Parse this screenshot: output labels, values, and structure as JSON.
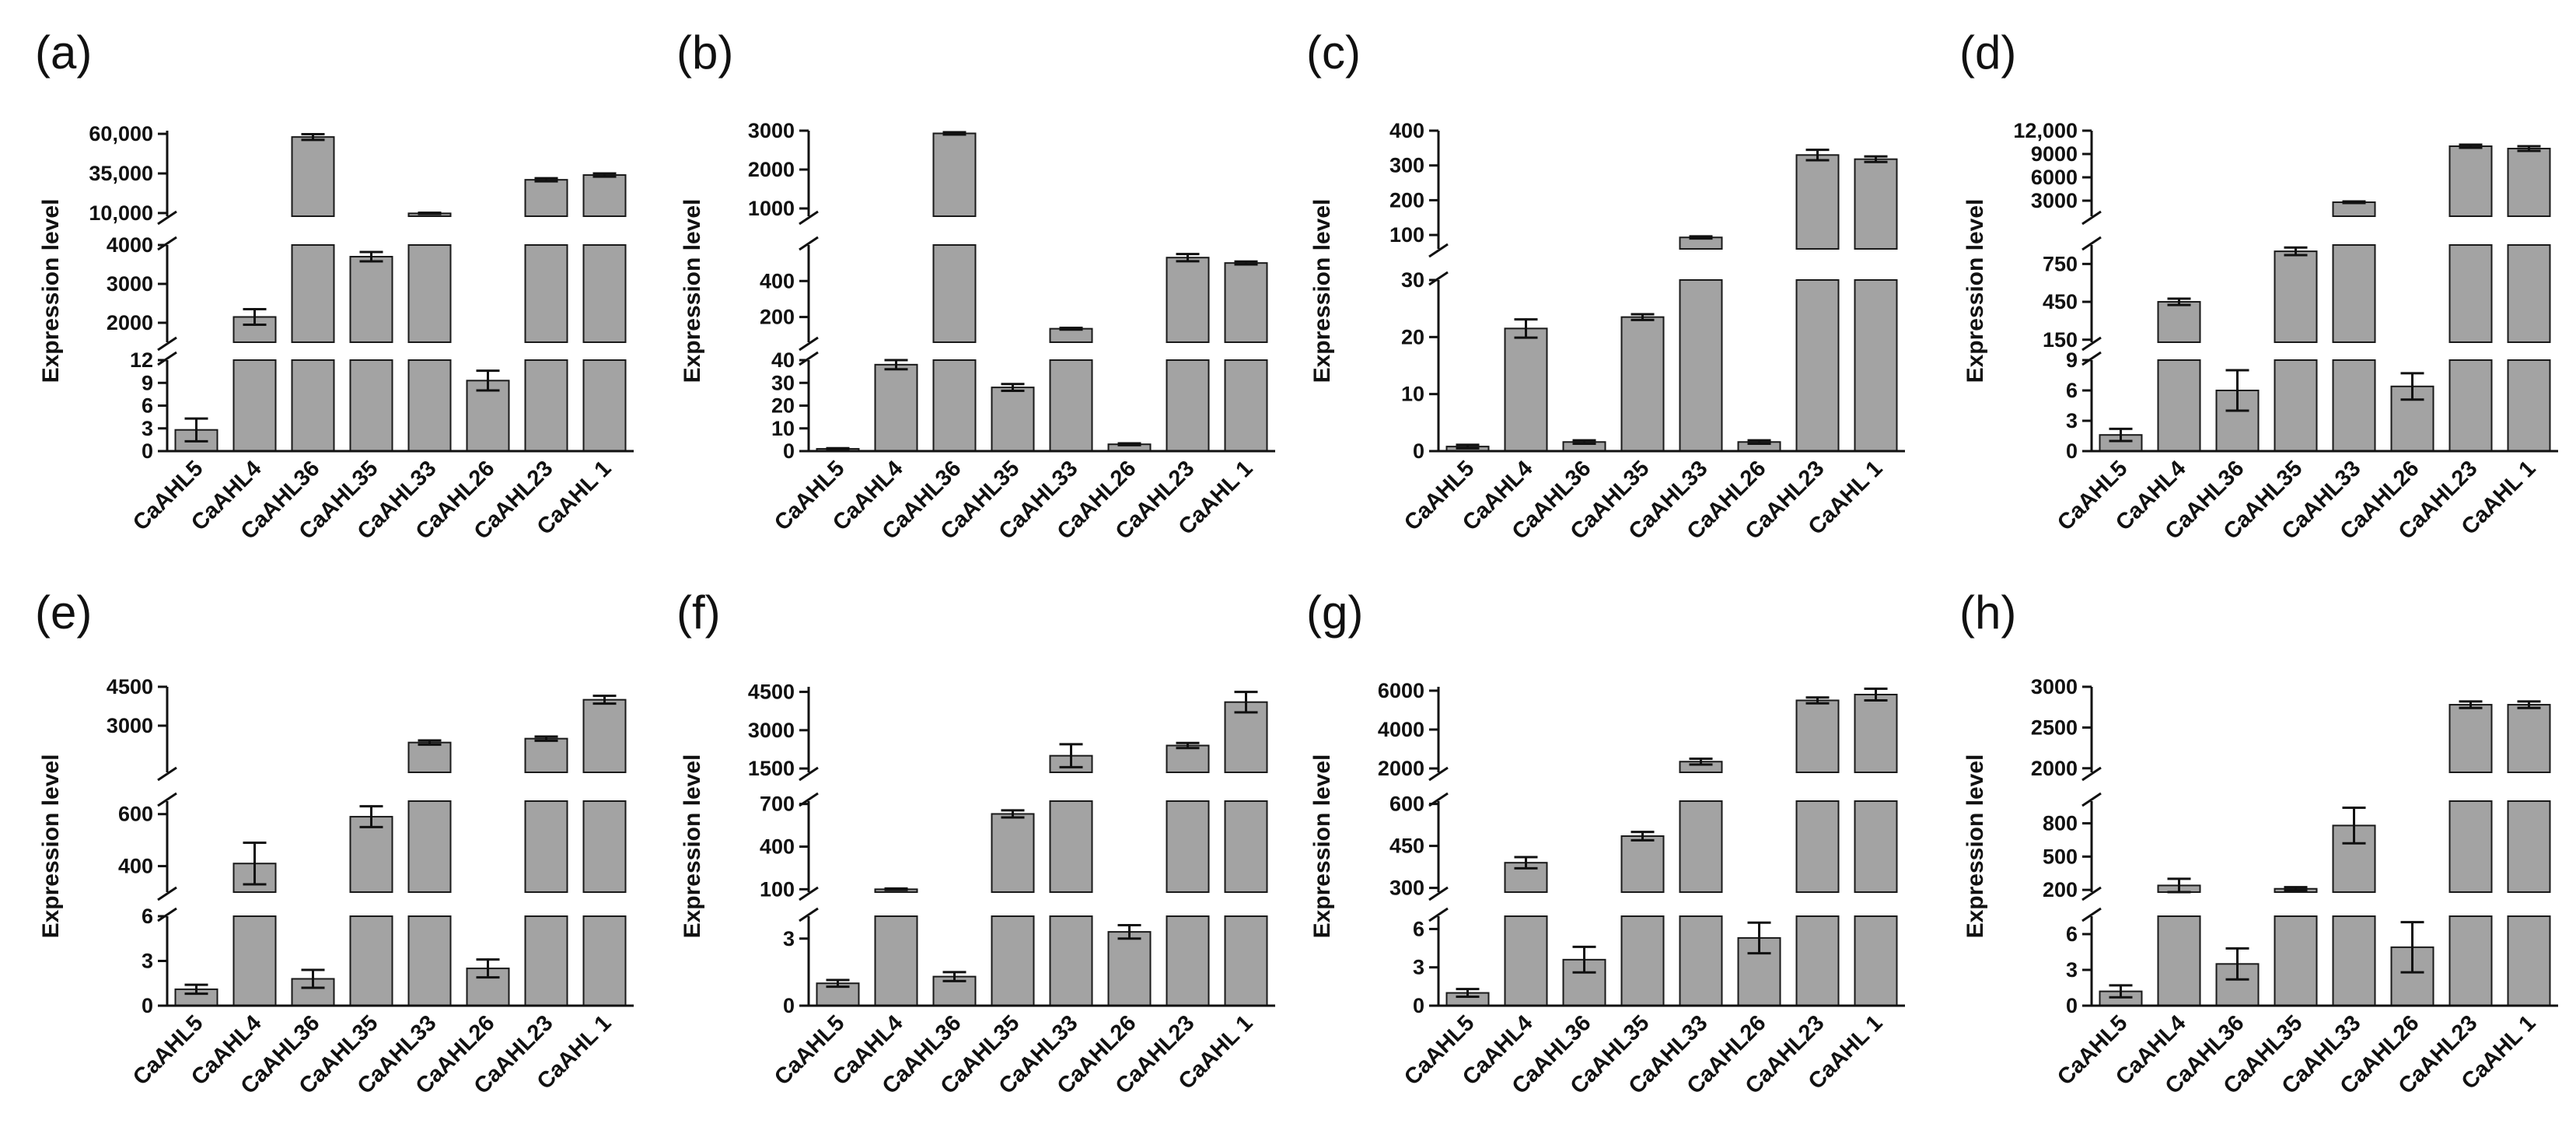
{
  "chart_data": [
    {
      "panel": "(a)",
      "type": "bar",
      "ylabel": "Expression level",
      "categories": [
        "CaAHL5",
        "CaAHL4",
        "CaAHL36",
        "CaAHL35",
        "CaAHL33",
        "CaAHL26",
        "CaAHL23",
        "CaAHL 1"
      ],
      "values": [
        2.8,
        2150,
        58000,
        3700,
        9800,
        9.3,
        31000,
        34000
      ],
      "errors": [
        1.5,
        200,
        1800,
        120,
        400,
        1.3,
        1000,
        1000
      ],
      "segments": [
        {
          "min": 0,
          "max": 12,
          "ticks": [
            0,
            3,
            6,
            9,
            12
          ],
          "tick_labels": [
            "0",
            "3",
            "6",
            "9",
            "12"
          ]
        },
        {
          "min": 1500,
          "max": 4000,
          "ticks": [
            2000,
            3000,
            4000
          ],
          "tick_labels": [
            "2000",
            "3000",
            "4000"
          ]
        },
        {
          "min": 8000,
          "max": 62000,
          "ticks": [
            10000,
            35000,
            60000
          ],
          "tick_labels": [
            "10,000",
            "35,000",
            "60,000"
          ]
        }
      ]
    },
    {
      "panel": "(b)",
      "type": "bar",
      "ylabel": "Expression level",
      "categories": [
        "CaAHL5",
        "CaAHL4",
        "CaAHL36",
        "CaAHL35",
        "CaAHL33",
        "CaAHL26",
        "CaAHL23",
        "CaAHL 1"
      ],
      "values": [
        1.0,
        38,
        2930,
        28,
        135,
        3.0,
        530,
        500
      ],
      "errors": [
        0.3,
        2,
        30,
        1.5,
        5,
        0.4,
        20,
        8
      ],
      "segments": [
        {
          "min": 0,
          "max": 40,
          "ticks": [
            0,
            10,
            20,
            30,
            40
          ],
          "tick_labels": [
            "0",
            "10",
            "20",
            "30",
            "40"
          ]
        },
        {
          "min": 60,
          "max": 600,
          "ticks": [
            200,
            400
          ],
          "tick_labels": [
            "200",
            "400"
          ]
        },
        {
          "min": 800,
          "max": 3000,
          "ticks": [
            1000,
            2000,
            3000
          ],
          "tick_labels": [
            "1000",
            "2000",
            "3000"
          ]
        }
      ]
    },
    {
      "panel": "(c)",
      "type": "bar",
      "ylabel": "Expression level",
      "categories": [
        "CaAHL5",
        "CaAHL4",
        "CaAHL36",
        "CaAHL35",
        "CaAHL33",
        "CaAHL26",
        "CaAHL23",
        "CaAHL 1"
      ],
      "values": [
        0.8,
        21.5,
        1.6,
        23.5,
        93,
        1.6,
        330,
        318
      ],
      "errors": [
        0.3,
        1.6,
        0.3,
        0.5,
        3,
        0.3,
        15,
        8
      ],
      "segments": [
        {
          "min": 0,
          "max": 30,
          "ticks": [
            0,
            10,
            20,
            30
          ],
          "tick_labels": [
            "0",
            "10",
            "20",
            "30"
          ]
        },
        {
          "min": 60,
          "max": 400,
          "ticks": [
            100,
            200,
            300,
            400
          ],
          "tick_labels": [
            "100",
            "200",
            "300",
            "400"
          ]
        }
      ]
    },
    {
      "panel": "(d)",
      "type": "bar",
      "ylabel": "Expression level",
      "categories": [
        "CaAHL5",
        "CaAHL4",
        "CaAHL36",
        "CaAHL35",
        "CaAHL33",
        "CaAHL26",
        "CaAHL23",
        "CaAHL 1"
      ],
      "values": [
        1.6,
        450,
        6.0,
        850,
        2800,
        6.4,
        10000,
        9700
      ],
      "errors": [
        0.6,
        25,
        2.0,
        30,
        100,
        1.3,
        200,
        300
      ],
      "segments": [
        {
          "min": 0,
          "max": 9,
          "ticks": [
            0,
            3,
            6,
            9
          ],
          "tick_labels": [
            "0",
            "3",
            "6",
            "9"
          ]
        },
        {
          "min": 130,
          "max": 900,
          "ticks": [
            150,
            450,
            750
          ],
          "tick_labels": [
            "150",
            "450",
            "750"
          ]
        },
        {
          "min": 1000,
          "max": 12000,
          "ticks": [
            3000,
            6000,
            9000,
            12000
          ],
          "tick_labels": [
            "3000",
            "6000",
            "9000",
            "12,000"
          ]
        }
      ]
    },
    {
      "panel": "(e)",
      "type": "bar",
      "ylabel": "Expression level",
      "categories": [
        "CaAHL5",
        "CaAHL4",
        "CaAHL36",
        "CaAHL35",
        "CaAHL33",
        "CaAHL26",
        "CaAHL23",
        "CaAHL 1"
      ],
      "values": [
        1.1,
        410,
        1.8,
        590,
        2350,
        2.5,
        2500,
        4000
      ],
      "errors": [
        0.3,
        80,
        0.6,
        40,
        80,
        0.6,
        80,
        150
      ],
      "segments": [
        {
          "min": 0,
          "max": 6,
          "ticks": [
            0,
            3,
            6
          ],
          "tick_labels": [
            "0",
            "3",
            "6"
          ]
        },
        {
          "min": 300,
          "max": 650,
          "ticks": [
            400,
            600
          ],
          "tick_labels": [
            "400",
            "600"
          ]
        },
        {
          "min": 1200,
          "max": 4500,
          "ticks": [
            3000,
            4500
          ],
          "tick_labels": [
            "3000",
            "4500"
          ]
        }
      ]
    },
    {
      "panel": "(f)",
      "type": "bar",
      "ylabel": "Expression level",
      "categories": [
        "CaAHL5",
        "CaAHL4",
        "CaAHL36",
        "CaAHL35",
        "CaAHL33",
        "CaAHL26",
        "CaAHL23",
        "CaAHL 1"
      ],
      "values": [
        1.0,
        100,
        1.3,
        630,
        2000,
        3.3,
        2400,
        4100
      ],
      "errors": [
        0.15,
        5,
        0.2,
        25,
        450,
        0.3,
        100,
        400
      ],
      "segments": [
        {
          "min": 0,
          "max": 4,
          "ticks": [
            0,
            3
          ],
          "tick_labels": [
            "0",
            "3"
          ]
        },
        {
          "min": 80,
          "max": 720,
          "ticks": [
            100,
            400,
            700
          ],
          "tick_labels": [
            "100",
            "400",
            "700"
          ]
        },
        {
          "min": 1350,
          "max": 4700,
          "ticks": [
            1500,
            3000,
            4500
          ],
          "tick_labels": [
            "1500",
            "3000",
            "4500"
          ]
        }
      ]
    },
    {
      "panel": "(g)",
      "type": "bar",
      "ylabel": "Expression level",
      "categories": [
        "CaAHL5",
        "CaAHL4",
        "CaAHL36",
        "CaAHL35",
        "CaAHL33",
        "CaAHL26",
        "CaAHL23",
        "CaAHL 1"
      ],
      "values": [
        1.0,
        390,
        3.6,
        485,
        2350,
        5.3,
        5500,
        5800
      ],
      "errors": [
        0.3,
        20,
        1.0,
        15,
        150,
        1.2,
        150,
        300
      ],
      "segments": [
        {
          "min": 0,
          "max": 7,
          "ticks": [
            0,
            3,
            6
          ],
          "tick_labels": [
            "0",
            "3",
            "6"
          ]
        },
        {
          "min": 285,
          "max": 610,
          "ticks": [
            300,
            450,
            600
          ],
          "tick_labels": [
            "300",
            "450",
            "600"
          ]
        },
        {
          "min": 1800,
          "max": 6200,
          "ticks": [
            2000,
            4000,
            6000
          ],
          "tick_labels": [
            "2000",
            "4000",
            "6000"
          ]
        }
      ]
    },
    {
      "panel": "(h)",
      "type": "bar",
      "ylabel": "Expression level",
      "categories": [
        "CaAHL5",
        "CaAHL4",
        "CaAHL36",
        "CaAHL35",
        "CaAHL33",
        "CaAHL26",
        "CaAHL23",
        "CaAHL 1"
      ],
      "values": [
        1.2,
        240,
        3.5,
        210,
        780,
        4.9,
        2780,
        2780
      ],
      "errors": [
        0.5,
        60,
        1.3,
        15,
        160,
        2.1,
        40,
        40
      ],
      "segments": [
        {
          "min": 0,
          "max": 7.5,
          "ticks": [
            0,
            3,
            6
          ],
          "tick_labels": [
            "0",
            "3",
            "6"
          ]
        },
        {
          "min": 180,
          "max": 1000,
          "ticks": [
            200,
            500,
            800
          ],
          "tick_labels": [
            "200",
            "500",
            "800"
          ]
        },
        {
          "min": 1950,
          "max": 3000,
          "ticks": [
            2000,
            2500,
            3000
          ],
          "tick_labels": [
            "2000",
            "2500",
            "3000"
          ]
        }
      ]
    }
  ],
  "colors": {
    "bar_fill": "#a3a3a3",
    "bar_stroke": "#1a1a1a",
    "axis": "#111111",
    "background": "#ffffff"
  }
}
